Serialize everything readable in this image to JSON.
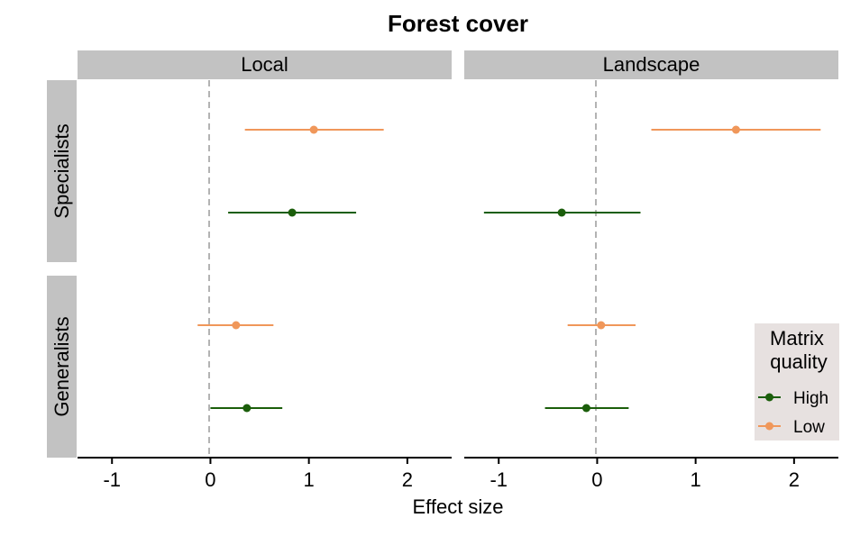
{
  "chart_data": {
    "type": "scatter",
    "subtype": "faceted dot-and-whisker (point estimate with confidence interval)",
    "title": "Forest cover",
    "xlabel": "Effect size",
    "ylabel": "",
    "xlim": [
      -1.35,
      2.45
    ],
    "x_ticks": [
      -1,
      0,
      1,
      2
    ],
    "x_tick_labels": [
      "-1",
      "0",
      "1",
      "2"
    ],
    "reference_line": {
      "x": 0,
      "style": "dashed",
      "color": "#b3b3b3"
    },
    "facet_columns": [
      "Local",
      "Landscape"
    ],
    "facet_rows": [
      "Specialists",
      "Generalists"
    ],
    "grid": false,
    "legend": {
      "title_lines": [
        "Matrix",
        "quality"
      ],
      "placement": "bottom-right",
      "entries": [
        {
          "label": "High",
          "color": "#1b5e0b"
        },
        {
          "label": "Low",
          "color": "#f0975a"
        }
      ]
    },
    "series": [
      {
        "name": "High",
        "color": "#1b5e0b",
        "points": [
          {
            "column": "Local",
            "row": "Specialists",
            "estimate": 0.83,
            "lower": 0.18,
            "upper": 1.48
          },
          {
            "column": "Landscape",
            "row": "Specialists",
            "estimate": -0.36,
            "lower": -1.15,
            "upper": 0.44
          },
          {
            "column": "Local",
            "row": "Generalists",
            "estimate": 0.37,
            "lower": 0.0,
            "upper": 0.73
          },
          {
            "column": "Landscape",
            "row": "Generalists",
            "estimate": -0.11,
            "lower": -0.53,
            "upper": 0.32
          }
        ]
      },
      {
        "name": "Low",
        "color": "#f0975a",
        "points": [
          {
            "column": "Local",
            "row": "Specialists",
            "estimate": 1.05,
            "lower": 0.35,
            "upper": 1.76
          },
          {
            "column": "Landscape",
            "row": "Specialists",
            "estimate": 1.41,
            "lower": 0.55,
            "upper": 2.27
          },
          {
            "column": "Local",
            "row": "Generalists",
            "estimate": 0.26,
            "lower": -0.13,
            "upper": 0.64
          },
          {
            "column": "Landscape",
            "row": "Generalists",
            "estimate": 0.04,
            "lower": -0.3,
            "upper": 0.39
          }
        ]
      }
    ]
  },
  "colors": {
    "strip_background": "#c2c2c2",
    "legend_background": "#e7e1e0",
    "axis_line": "#000000",
    "reference_line": "#b3b3b3"
  }
}
